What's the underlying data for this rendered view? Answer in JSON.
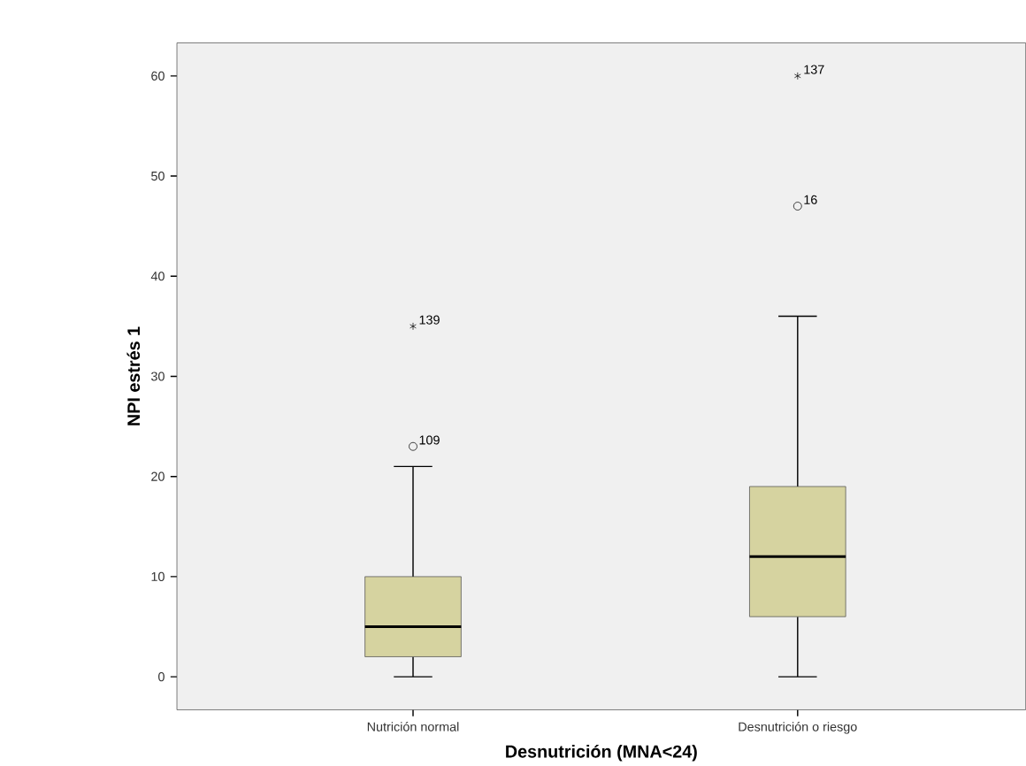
{
  "chart_data": {
    "type": "box",
    "xlabel": "Desnutrición (MNA<24)",
    "ylabel": "NPI estrés 1",
    "categories": [
      "Nutrición normal",
      "Desnutrición o riesgo"
    ],
    "color": "#d6d3a0",
    "boxes": [
      {
        "low": 0,
        "q1": 2,
        "median": 5,
        "q3": 10,
        "high": 21,
        "outliers": [
          23,
          35
        ]
      },
      {
        "low": 0,
        "q1": 6,
        "median": 12,
        "q3": 19,
        "high": 36,
        "outliers": [
          47,
          60
        ]
      }
    ],
    "ylim": [
      -3.3,
      63.3
    ],
    "yticks": [
      0,
      10,
      20,
      30,
      40,
      50,
      60
    ],
    "annotations": [
      "109",
      "139",
      "16",
      "137"
    ]
  }
}
